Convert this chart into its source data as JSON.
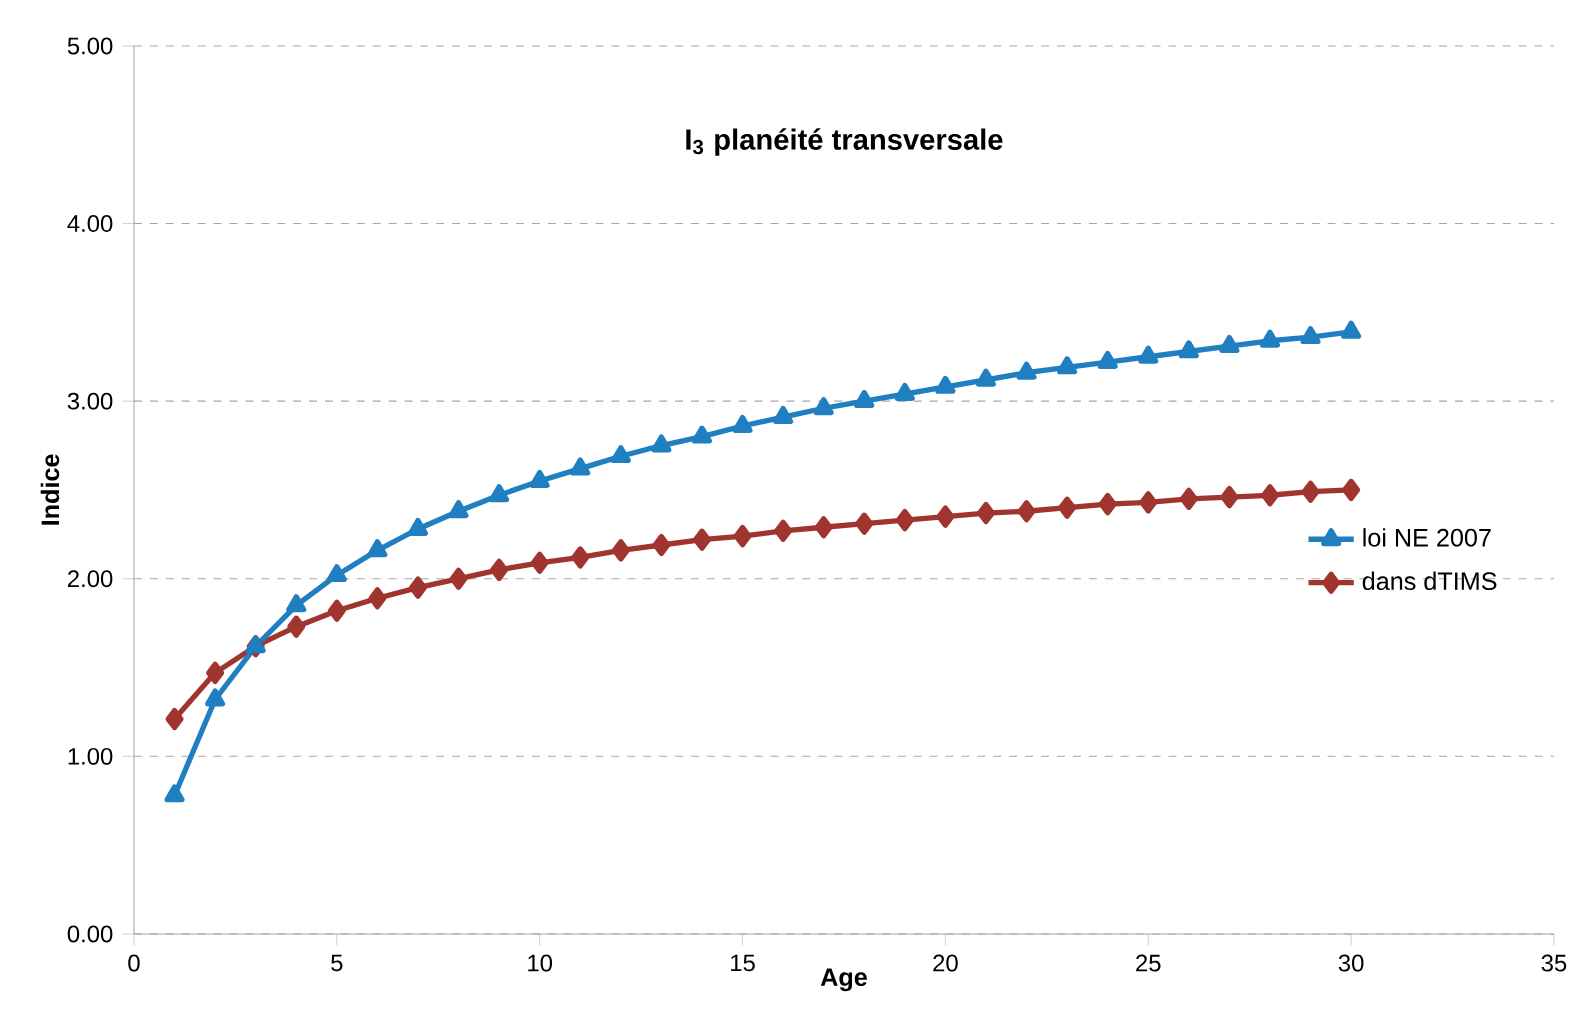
{
  "chart_data": {
    "type": "line",
    "title": "I$_{3}$ planéité transversale",
    "xlabel": "Age",
    "ylabel": "Indice",
    "xlim": [
      0,
      35
    ],
    "xticks": [
      0,
      5,
      10,
      15,
      20,
      25,
      30,
      35
    ],
    "ylim": [
      0,
      5
    ],
    "yticks": [
      {
        "value": 0,
        "label": "0.00"
      },
      {
        "value": 1,
        "label": "1.00"
      },
      {
        "value": 2,
        "label": "2.00"
      },
      {
        "value": 3,
        "label": "3.00"
      },
      {
        "value": 4,
        "label": "4.00"
      },
      {
        "value": 5,
        "label": "5.00"
      }
    ],
    "grid": "y",
    "legend": "right",
    "line_style": "solid",
    "x": [
      1,
      2,
      3,
      4,
      5,
      6,
      7,
      8,
      9,
      10,
      11,
      12,
      13,
      14,
      15,
      16,
      17,
      18,
      19,
      20,
      21,
      22,
      23,
      24,
      25,
      26,
      27,
      28,
      29,
      30
    ],
    "series": [
      {
        "name": "loi NE 2007",
        "color": "#1f7fc0",
        "marker": "triangle",
        "values": [
          0.78,
          1.32,
          1.62,
          1.85,
          2.02,
          2.16,
          2.28,
          2.38,
          2.47,
          2.55,
          2.62,
          2.69,
          2.75,
          2.8,
          2.86,
          2.91,
          2.96,
          3.0,
          3.04,
          3.08,
          3.12,
          3.16,
          3.19,
          3.22,
          3.25,
          3.28,
          3.31,
          3.34,
          3.36,
          3.39
        ]
      },
      {
        "name": "dans dTIMS",
        "color": "#a0352f",
        "marker": "diamond",
        "values": [
          1.21,
          1.47,
          1.62,
          1.73,
          1.82,
          1.89,
          1.95,
          2.0,
          2.05,
          2.09,
          2.12,
          2.16,
          2.19,
          2.22,
          2.24,
          2.27,
          2.29,
          2.31,
          2.33,
          2.35,
          2.37,
          2.38,
          2.4,
          2.42,
          2.43,
          2.45,
          2.46,
          2.47,
          2.49,
          2.5
        ]
      }
    ]
  }
}
